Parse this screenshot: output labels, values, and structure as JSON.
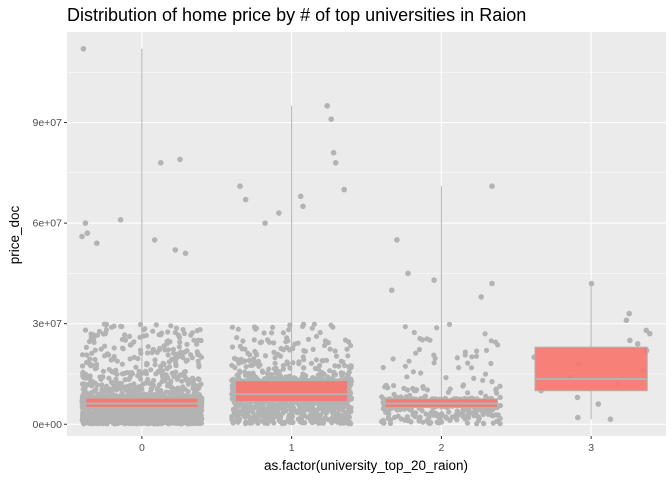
{
  "chart_data": {
    "type": "box",
    "title": "Distribution of home price by # of top universities in Raion",
    "xlabel": "as.factor(university_top_20_raion)",
    "ylabel": "price_doc",
    "categories": [
      "0",
      "1",
      "2",
      "3"
    ],
    "y_ticks": [
      0,
      30000000,
      60000000,
      90000000
    ],
    "y_tick_labels": [
      "0e+00",
      "3e+07",
      "6e+07",
      "9e+07"
    ],
    "ylim": [
      -3500000,
      117000000
    ],
    "grid": true,
    "legend": "none",
    "colors": {
      "panel": "#ebebeb",
      "grid": "#ffffff",
      "points": "#b3b3b3",
      "box_fill": "#f8766d",
      "median_line": "#b3b3b3"
    },
    "boxes": [
      {
        "category": "0",
        "q1": 5000000,
        "median": 6200000,
        "q3": 7800000,
        "whisker_low": 100000,
        "whisker_high": 112000000
      },
      {
        "category": "1",
        "q1": 6800000,
        "median": 9000000,
        "q3": 13000000,
        "whisker_low": 200000,
        "whisker_high": 95000000
      },
      {
        "category": "2",
        "q1": 5000000,
        "median": 6200000,
        "q3": 7600000,
        "whisker_low": 150000,
        "whisker_high": 71000000
      },
      {
        "category": "3",
        "q1": 10000000,
        "median": 13500000,
        "q3": 23000000,
        "whisker_low": 1500000,
        "whisker_high": 42000000
      }
    ],
    "notable_points": [
      {
        "category": "0",
        "values": [
          112000000,
          79000000,
          78000000,
          61000000,
          60000000,
          57000000,
          56000000,
          55000000,
          54000000,
          52000000,
          51000000
        ]
      },
      {
        "category": "1",
        "values": [
          95000000,
          91000000,
          81000000,
          78000000,
          71000000,
          70000000,
          68000000,
          67000000,
          65000000,
          63000000,
          60000000
        ]
      },
      {
        "category": "2",
        "values": [
          71000000,
          55000000,
          45000000,
          43000000,
          42000000,
          40000000,
          38000000
        ]
      },
      {
        "category": "3",
        "values": [
          42000000,
          33000000,
          31000000,
          28000000,
          27000000,
          25000000,
          24000000,
          22000000,
          20000000,
          18000000,
          16000000,
          14000000,
          12000000,
          10000000,
          8000000,
          6000000,
          2000000,
          1500000
        ]
      }
    ]
  }
}
